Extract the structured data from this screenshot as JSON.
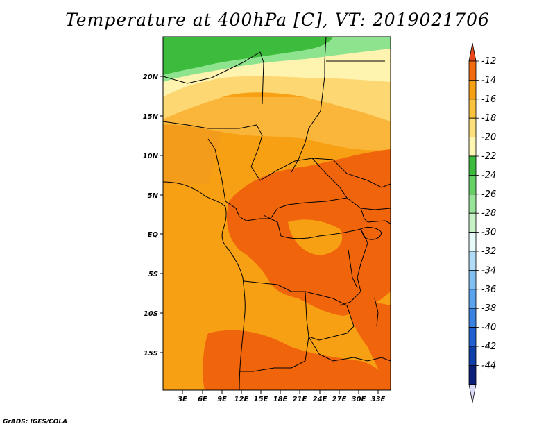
{
  "title": "Temperature at 400hPa [C], VT: 2019021706",
  "credit": "GrADS: IGES/COLA",
  "lat_labels": [
    "20N",
    "15N",
    "10N",
    "5N",
    "EQ",
    "5S",
    "10S",
    "15S"
  ],
  "lon_labels": [
    "3E",
    "6E",
    "9E",
    "12E",
    "15E",
    "18E",
    "21E",
    "24E",
    "27E",
    "30E",
    "33E"
  ],
  "colorbar": {
    "labels": [
      "-12",
      "-14",
      "-16",
      "-18",
      "-20",
      "-22",
      "-24",
      "-26",
      "-28",
      "-30",
      "-32",
      "-34",
      "-36",
      "-38",
      "-40",
      "-42",
      "-44"
    ],
    "colors": [
      "#e8471b",
      "#f26b0f",
      "#f7a014",
      "#f9c33e",
      "#fde07a",
      "#fff6b3",
      "#3cbb3c",
      "#66d266",
      "#98e498",
      "#c6f2c6",
      "#e6fafa",
      "#b1dcf7",
      "#82c0f2",
      "#5aa3ee",
      "#3a83e3",
      "#1f61d0",
      "#0d3fab",
      "#0a1f7a",
      "#dcdcf6"
    ]
  },
  "map_colors": {
    "orange_dark": "#f0640c",
    "orange": "#f7a014",
    "orange_light": "#f9b63a",
    "yellow": "#fdd771",
    "yellow_light": "#fff3b0",
    "green_light": "#8ee48e",
    "green": "#3cbb3c"
  }
}
